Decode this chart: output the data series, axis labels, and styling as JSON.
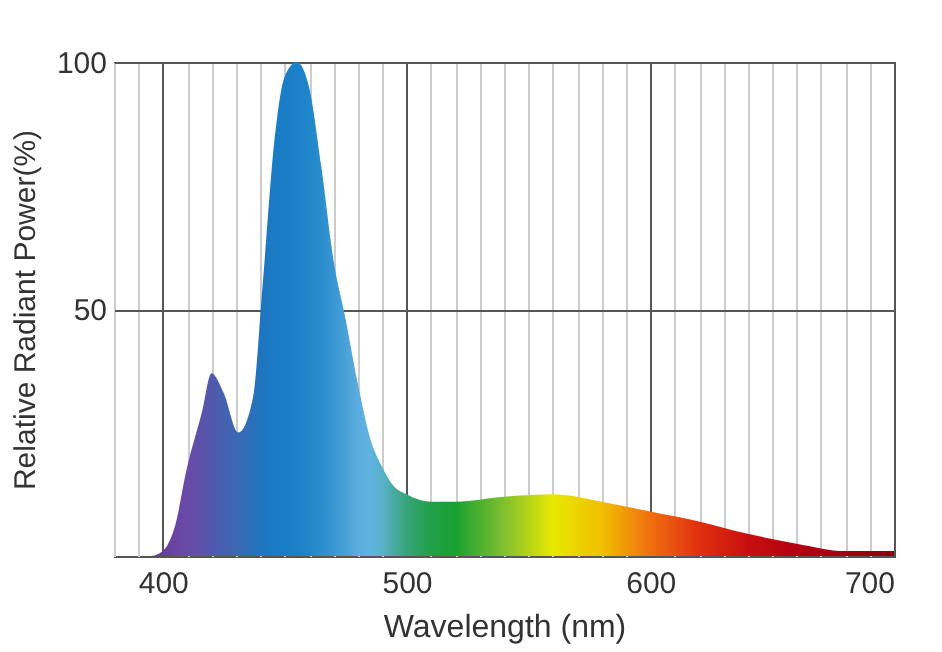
{
  "chart_data": {
    "type": "area",
    "xlabel": "Wavelength (nm)",
    "ylabel": "Relative Radiant Power(%)",
    "x": [
      380,
      395,
      400,
      405,
      410,
      416,
      420,
      425,
      431,
      437,
      441,
      446,
      450,
      455,
      460,
      465,
      470,
      475,
      480,
      485,
      490,
      495,
      500,
      510,
      520,
      540,
      560,
      580,
      600,
      620,
      640,
      660,
      680,
      700
    ],
    "values": [
      0,
      0,
      1,
      6,
      18,
      29,
      37,
      33,
      25,
      32,
      55,
      85,
      97,
      100,
      95,
      79,
      60,
      48,
      35,
      24,
      18,
      14,
      12.5,
      11,
      11,
      12,
      12.5,
      11,
      9,
      7,
      4.5,
      2.5,
      1,
      1
    ],
    "colors": [
      "#5a3b8a",
      "#5e3c90",
      "#653f9a",
      "#6a44a2",
      "#6a4aa8",
      "#5c52aa",
      "#5058ac",
      "#4660b0",
      "#3a68b4",
      "#2a70ba",
      "#1e76c0",
      "#1a7cc4",
      "#1a7ec6",
      "#1a80c8",
      "#2086ca",
      "#2a8ecc",
      "#3896d2",
      "#4aa0d8",
      "#5aacde",
      "#60b4e0",
      "#58b2c8",
      "#48aaa0",
      "#36a47a",
      "#22a048",
      "#18a030",
      "#80c030",
      "#e8e800",
      "#f0c000",
      "#f07010",
      "#e03010",
      "#c81010",
      "#b40010",
      "#a40010",
      "#900010"
    ],
    "xlim": [
      380,
      700
    ],
    "xticks": [
      400,
      500,
      600,
      700
    ],
    "ylim": [
      0,
      100
    ],
    "yticks": [
      50,
      100
    ],
    "grid": true
  }
}
